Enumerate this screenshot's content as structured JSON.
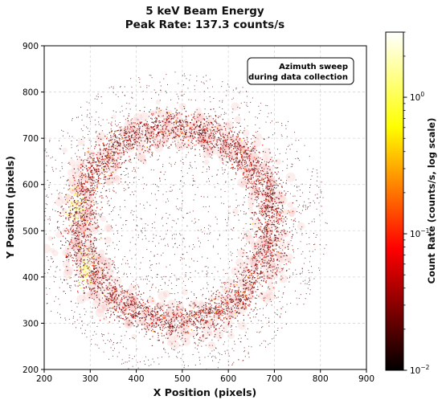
{
  "chart_data": {
    "type": "heatmap",
    "title": "5 keV Beam Energy",
    "subtitle": "Peak Rate: 137.3 counts/s",
    "xlabel": "X Position (pixels)",
    "ylabel": "Y Position (pixels)",
    "xlim": [
      200,
      900
    ],
    "ylim": [
      200,
      900
    ],
    "x_ticks": [
      "200",
      "300",
      "400",
      "500",
      "600",
      "700",
      "800",
      "900"
    ],
    "y_ticks": [
      "200",
      "300",
      "400",
      "500",
      "600",
      "700",
      "800",
      "900"
    ],
    "grid": true,
    "annotation": [
      "Azimuth sweep",
      "during data collection"
    ],
    "colorbar": {
      "label": "Count Rate (counts/s, log scale)",
      "scale": "log",
      "range": [
        0.01,
        3.0
      ],
      "colormap": "hot",
      "ticks": [
        {
          "value": 1,
          "base": "10",
          "exp": "0"
        },
        {
          "value": 0.1,
          "base": "10",
          "exp": "−1"
        },
        {
          "value": 0.01,
          "base": "10",
          "exp": "−2"
        }
      ]
    },
    "ring": {
      "center": [
        485,
        515
      ],
      "radius": 210,
      "width": 55
    },
    "hotspots": [
      {
        "x": 265,
        "y": 555,
        "rate": 2.2
      },
      {
        "x": 290,
        "y": 420,
        "rate": 2.0
      }
    ]
  }
}
